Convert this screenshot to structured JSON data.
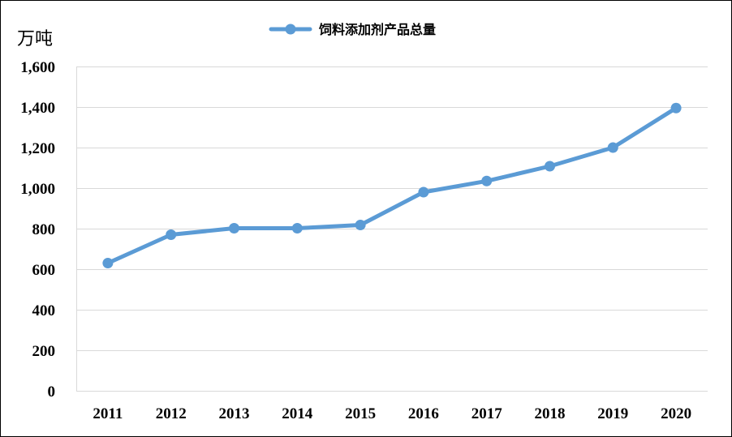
{
  "chart_data": {
    "type": "line",
    "title": "",
    "ylabel": "万吨",
    "xlabel": "",
    "categories": [
      "2011",
      "2012",
      "2013",
      "2014",
      "2015",
      "2016",
      "2017",
      "2018",
      "2019",
      "2020"
    ],
    "series": [
      {
        "name": "饲料添加剂产品总量",
        "color": "#5b9bd5",
        "values": [
          630,
          770,
          802,
          802,
          818,
          980,
          1035,
          1108,
          1200,
          1395
        ]
      }
    ],
    "ylim": [
      0,
      1600
    ],
    "yticks": [
      0,
      200,
      400,
      600,
      800,
      1000,
      1200,
      1400,
      1600
    ],
    "ytick_labels": [
      "0",
      "200",
      "400",
      "600",
      "800",
      "1,000",
      "1,200",
      "1,400",
      "1,600"
    ],
    "grid": true,
    "legend_position": "top-center",
    "marker": "circle"
  }
}
